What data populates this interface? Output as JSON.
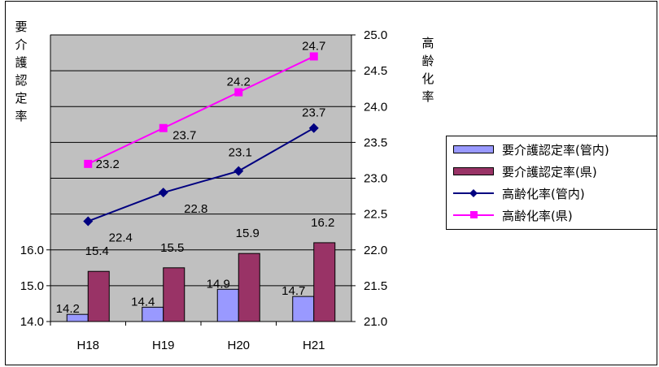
{
  "chart_data": {
    "type": "bar+line",
    "categories": [
      "H18",
      "H19",
      "H20",
      "H21"
    ],
    "left_axis": {
      "label_chars": [
        "要",
        "介",
        "護",
        "認",
        "定",
        "率"
      ],
      "ticks": [
        "14.0",
        "15.0",
        "16.0"
      ],
      "range": [
        14.0,
        16.0
      ]
    },
    "right_axis": {
      "label_chars": [
        "高",
        "齢",
        "化",
        "率"
      ],
      "ticks": [
        "21.0",
        "21.5",
        "22.0",
        "22.5",
        "23.0",
        "23.5",
        "24.0",
        "24.5",
        "25.0"
      ],
      "range": [
        21.0,
        25.0
      ]
    },
    "grid": true,
    "bar_series": [
      {
        "name": "要介護認定率(管内)",
        "values": [
          14.2,
          14.4,
          14.9,
          14.7
        ],
        "labels": [
          "14.2",
          "14.4",
          "14.9",
          "14.7"
        ],
        "color": "#9999ff"
      },
      {
        "name": "要介護認定率(県)",
        "values": [
          15.4,
          15.5,
          15.9,
          16.2
        ],
        "labels": [
          "15.4",
          "15.5",
          "15.9",
          "16.2"
        ],
        "color": "#993366"
      }
    ],
    "line_series": [
      {
        "name": "高齢化率(管内)",
        "values": [
          22.4,
          22.8,
          23.1,
          23.7
        ],
        "labels": [
          "22.4",
          "22.8",
          "23.1",
          "23.7"
        ],
        "color": "#000080",
        "marker": "diamond"
      },
      {
        "name": "高齢化率(県)",
        "values": [
          23.2,
          23.7,
          24.2,
          24.7
        ],
        "labels": [
          "23.2",
          "23.7",
          "24.2",
          "24.7"
        ],
        "color": "#ff00ff",
        "marker": "square"
      }
    ],
    "plot_background": "#c0c0c0",
    "legend_position": "right"
  }
}
